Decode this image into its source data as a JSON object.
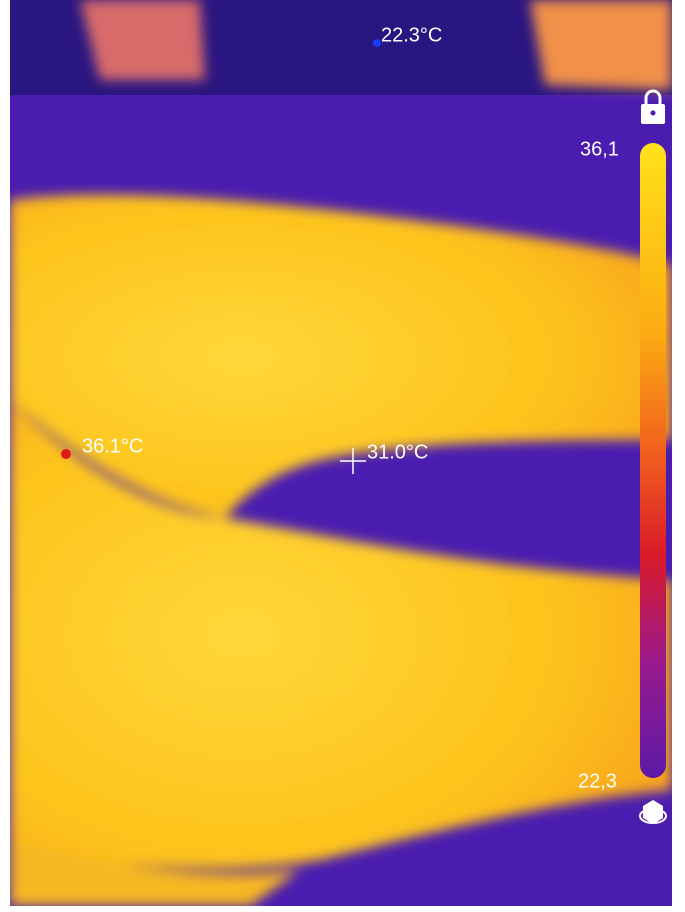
{
  "spots": {
    "min": {
      "label": "22.3°C"
    },
    "max": {
      "label": "36.1°C"
    },
    "center": {
      "label": "31.0°C"
    }
  },
  "scale": {
    "max_label": "36,1",
    "min_label": "22,3"
  }
}
